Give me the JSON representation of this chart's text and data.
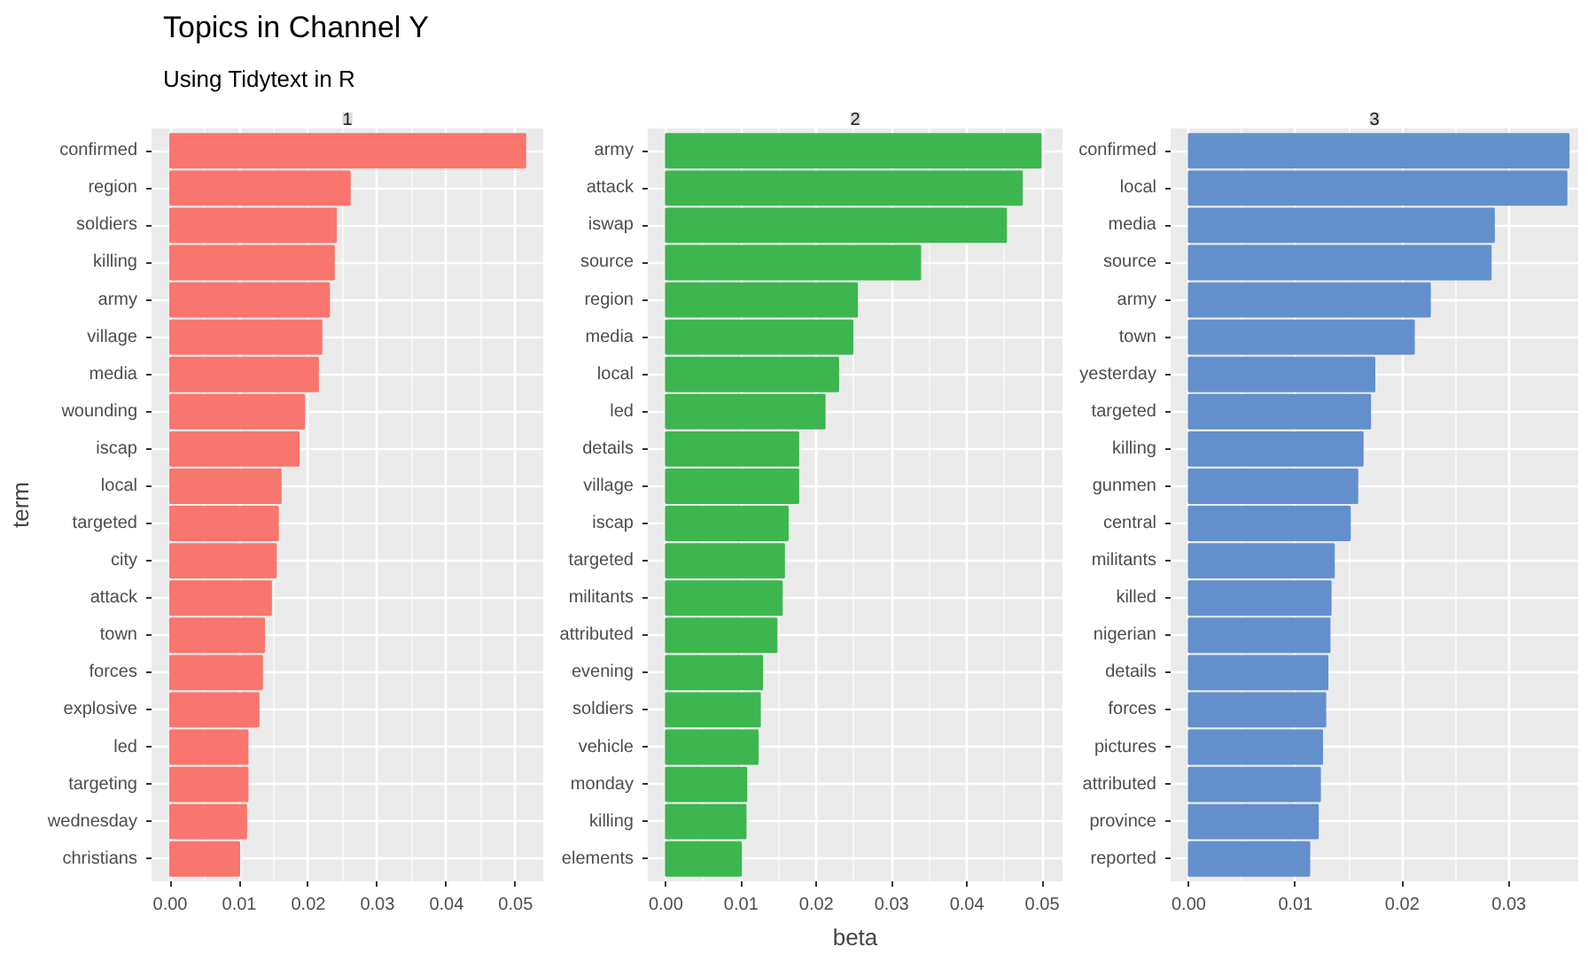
{
  "chart_data": [
    {
      "type": "bar",
      "orientation": "horizontal",
      "title": "1",
      "ylabel": "term",
      "annotations": [
        "Topics in Channel Y",
        "Using Tidytext in R"
      ],
      "grid": true,
      "color": "#f8766d",
      "categories": [
        "confirmed",
        "region",
        "soldiers",
        "killing",
        "army",
        "village",
        "media",
        "wounding",
        "iscap",
        "local",
        "targeted",
        "city",
        "attack",
        "town",
        "forces",
        "explosive",
        "led",
        "targeting",
        "wednesday",
        "christians"
      ],
      "values": [
        0.0514,
        0.026,
        0.024,
        0.0237,
        0.023,
        0.0219,
        0.0214,
        0.0194,
        0.0186,
        0.016,
        0.0156,
        0.0153,
        0.0146,
        0.0136,
        0.0133,
        0.0128,
        0.0112,
        0.0112,
        0.011,
        0.01
      ],
      "xlim": [
        -0.0027,
        0.054
      ],
      "xticks": [
        {
          "value": 0,
          "label": "0.00"
        },
        {
          "value": 0.01,
          "label": "0.01"
        },
        {
          "value": 0.02,
          "label": "0.02"
        },
        {
          "value": 0.03,
          "label": "0.03"
        },
        {
          "value": 0.04,
          "label": "0.04"
        },
        {
          "value": 0.05,
          "label": "0.05"
        }
      ]
    },
    {
      "type": "bar",
      "orientation": "horizontal",
      "title": "2",
      "xlabel": "beta",
      "grid": true,
      "color": "#3db64f",
      "categories": [
        "army",
        "attack",
        "iswap",
        "source",
        "region",
        "media",
        "local",
        "led",
        "details",
        "village",
        "iscap",
        "targeted",
        "militants",
        "attributed",
        "evening",
        "soldiers",
        "vehicle",
        "monday",
        "killing",
        "elements"
      ],
      "values": [
        0.0498,
        0.0473,
        0.0452,
        0.0338,
        0.0254,
        0.0248,
        0.0229,
        0.0211,
        0.0176,
        0.0176,
        0.0162,
        0.0157,
        0.0154,
        0.0147,
        0.0128,
        0.0125,
        0.0122,
        0.0107,
        0.0106,
        0.01
      ],
      "xlim": [
        -0.0024,
        0.0527
      ],
      "xticks": [
        {
          "value": 0,
          "label": "0.00"
        },
        {
          "value": 0.01,
          "label": "0.01"
        },
        {
          "value": 0.02,
          "label": "0.02"
        },
        {
          "value": 0.03,
          "label": "0.03"
        },
        {
          "value": 0.04,
          "label": "0.04"
        },
        {
          "value": 0.05,
          "label": "0.05"
        }
      ]
    },
    {
      "type": "bar",
      "orientation": "horizontal",
      "title": "3",
      "grid": true,
      "color": "#6390cd",
      "categories": [
        "confirmed",
        "local",
        "media",
        "source",
        "army",
        "town",
        "yesterday",
        "targeted",
        "killing",
        "gunmen",
        "central",
        "militants",
        "killed",
        "nigerian",
        "details",
        "forces",
        "pictures",
        "attributed",
        "province",
        "reported"
      ],
      "values": [
        0.0356,
        0.0354,
        0.0286,
        0.0283,
        0.0226,
        0.0211,
        0.0174,
        0.017,
        0.0163,
        0.0158,
        0.0151,
        0.0136,
        0.0133,
        0.0132,
        0.013,
        0.0128,
        0.0125,
        0.0123,
        0.0121,
        0.0113
      ],
      "xlim": [
        -0.0017,
        0.0365
      ],
      "xticks": [
        {
          "value": 0,
          "label": "0.00"
        },
        {
          "value": 0.01,
          "label": "0.01"
        },
        {
          "value": 0.02,
          "label": "0.02"
        },
        {
          "value": 0.03,
          "label": "0.03"
        }
      ]
    }
  ]
}
